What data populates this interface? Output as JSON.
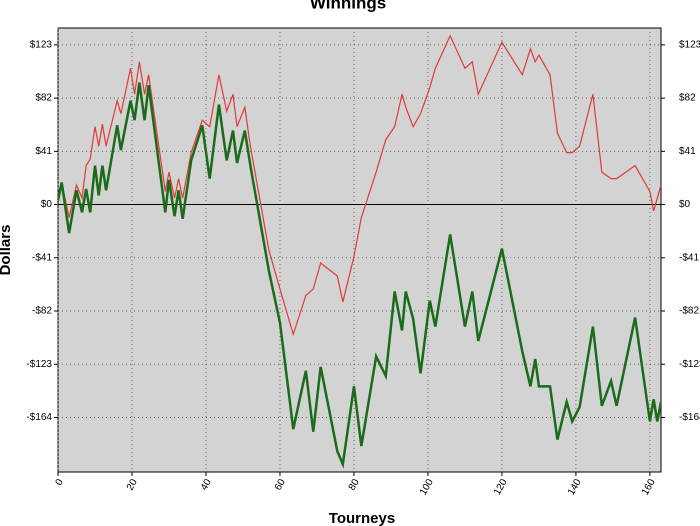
{
  "chart_data": {
    "type": "line",
    "title": "Winnings",
    "x_label": "Tourneys",
    "y_label": "Dollars",
    "x": [
      0,
      1,
      3,
      5,
      6.5,
      7.6,
      8.7,
      10,
      11,
      12,
      13,
      16,
      17,
      19.6,
      20.7,
      22,
      23.4,
      24.5,
      29,
      30,
      31.5,
      32.6,
      33.7,
      36,
      39,
      41,
      43.5,
      45.6,
      47.3,
      48.4,
      50.5,
      52,
      57,
      60,
      63.6,
      67,
      69,
      71,
      75.5,
      77,
      80,
      82,
      86,
      88.6,
      91,
      93,
      94,
      96,
      98,
      100.5,
      102,
      106,
      110,
      112,
      113.6,
      120,
      125.5,
      127.7,
      129,
      130,
      133,
      135,
      137.5,
      139,
      141,
      144.6,
      147,
      149.5,
      151,
      156,
      160,
      161,
      162,
      163
    ],
    "series": [
      {
        "color": "#e03a3a",
        "values": [
          3,
          17,
          -10,
          15,
          5,
          30,
          35,
          60,
          45,
          62,
          45,
          80,
          70,
          105,
          85,
          110,
          85,
          100,
          10,
          25,
          5,
          20,
          5,
          40,
          65,
          60,
          100,
          72,
          85,
          60,
          75,
          45,
          -35,
          -65,
          -100,
          -70,
          -65,
          -45,
          -55,
          -75,
          -40,
          -10,
          25,
          50,
          60,
          85,
          75,
          60,
          70,
          90,
          105,
          130,
          105,
          110,
          85,
          125,
          100,
          120,
          110,
          115,
          100,
          55,
          40,
          40,
          45,
          85,
          25,
          20,
          20,
          30,
          10,
          -5,
          5,
          15
        ]
      },
      {
        "color": "#1a6b1a",
        "values": [
          3,
          17,
          -22,
          11,
          -6,
          12,
          -6,
          30,
          7,
          30,
          11,
          61,
          42,
          80,
          65,
          94,
          65,
          92,
          -6,
          19,
          -9,
          11,
          -11,
          34,
          61,
          20,
          77,
          34,
          57,
          32,
          57,
          30,
          -51,
          -91,
          -173,
          -128,
          -175,
          -125,
          -190,
          -200,
          -140,
          -186,
          -117,
          -132,
          -67,
          -97,
          -67,
          -88,
          -130,
          -74,
          -94,
          -23,
          -94,
          -67,
          -105,
          -34,
          -113,
          -140,
          -119,
          -140,
          -140,
          -181,
          -152,
          -167,
          -156,
          -94,
          -155,
          -136,
          -155,
          -87,
          -167,
          -150,
          -167,
          -152
        ]
      }
    ],
    "xlim": [
      0,
      163
    ],
    "ylim": [
      -206,
      136
    ],
    "xticks": [
      0,
      20,
      40,
      60,
      80,
      100,
      120,
      140,
      160
    ],
    "yticks": [
      {
        "value": -164,
        "label": "-$164"
      },
      {
        "value": -123,
        "label": "-$123"
      },
      {
        "value": -82,
        "label": "-$82"
      },
      {
        "value": -41,
        "label": "-$41"
      },
      {
        "value": 0,
        "label": "$0"
      },
      {
        "value": 41,
        "label": "$41"
      },
      {
        "value": 82,
        "label": "$82"
      },
      {
        "value": 123,
        "label": "$123"
      }
    ],
    "grid": true,
    "background": "#d3d3d3"
  }
}
